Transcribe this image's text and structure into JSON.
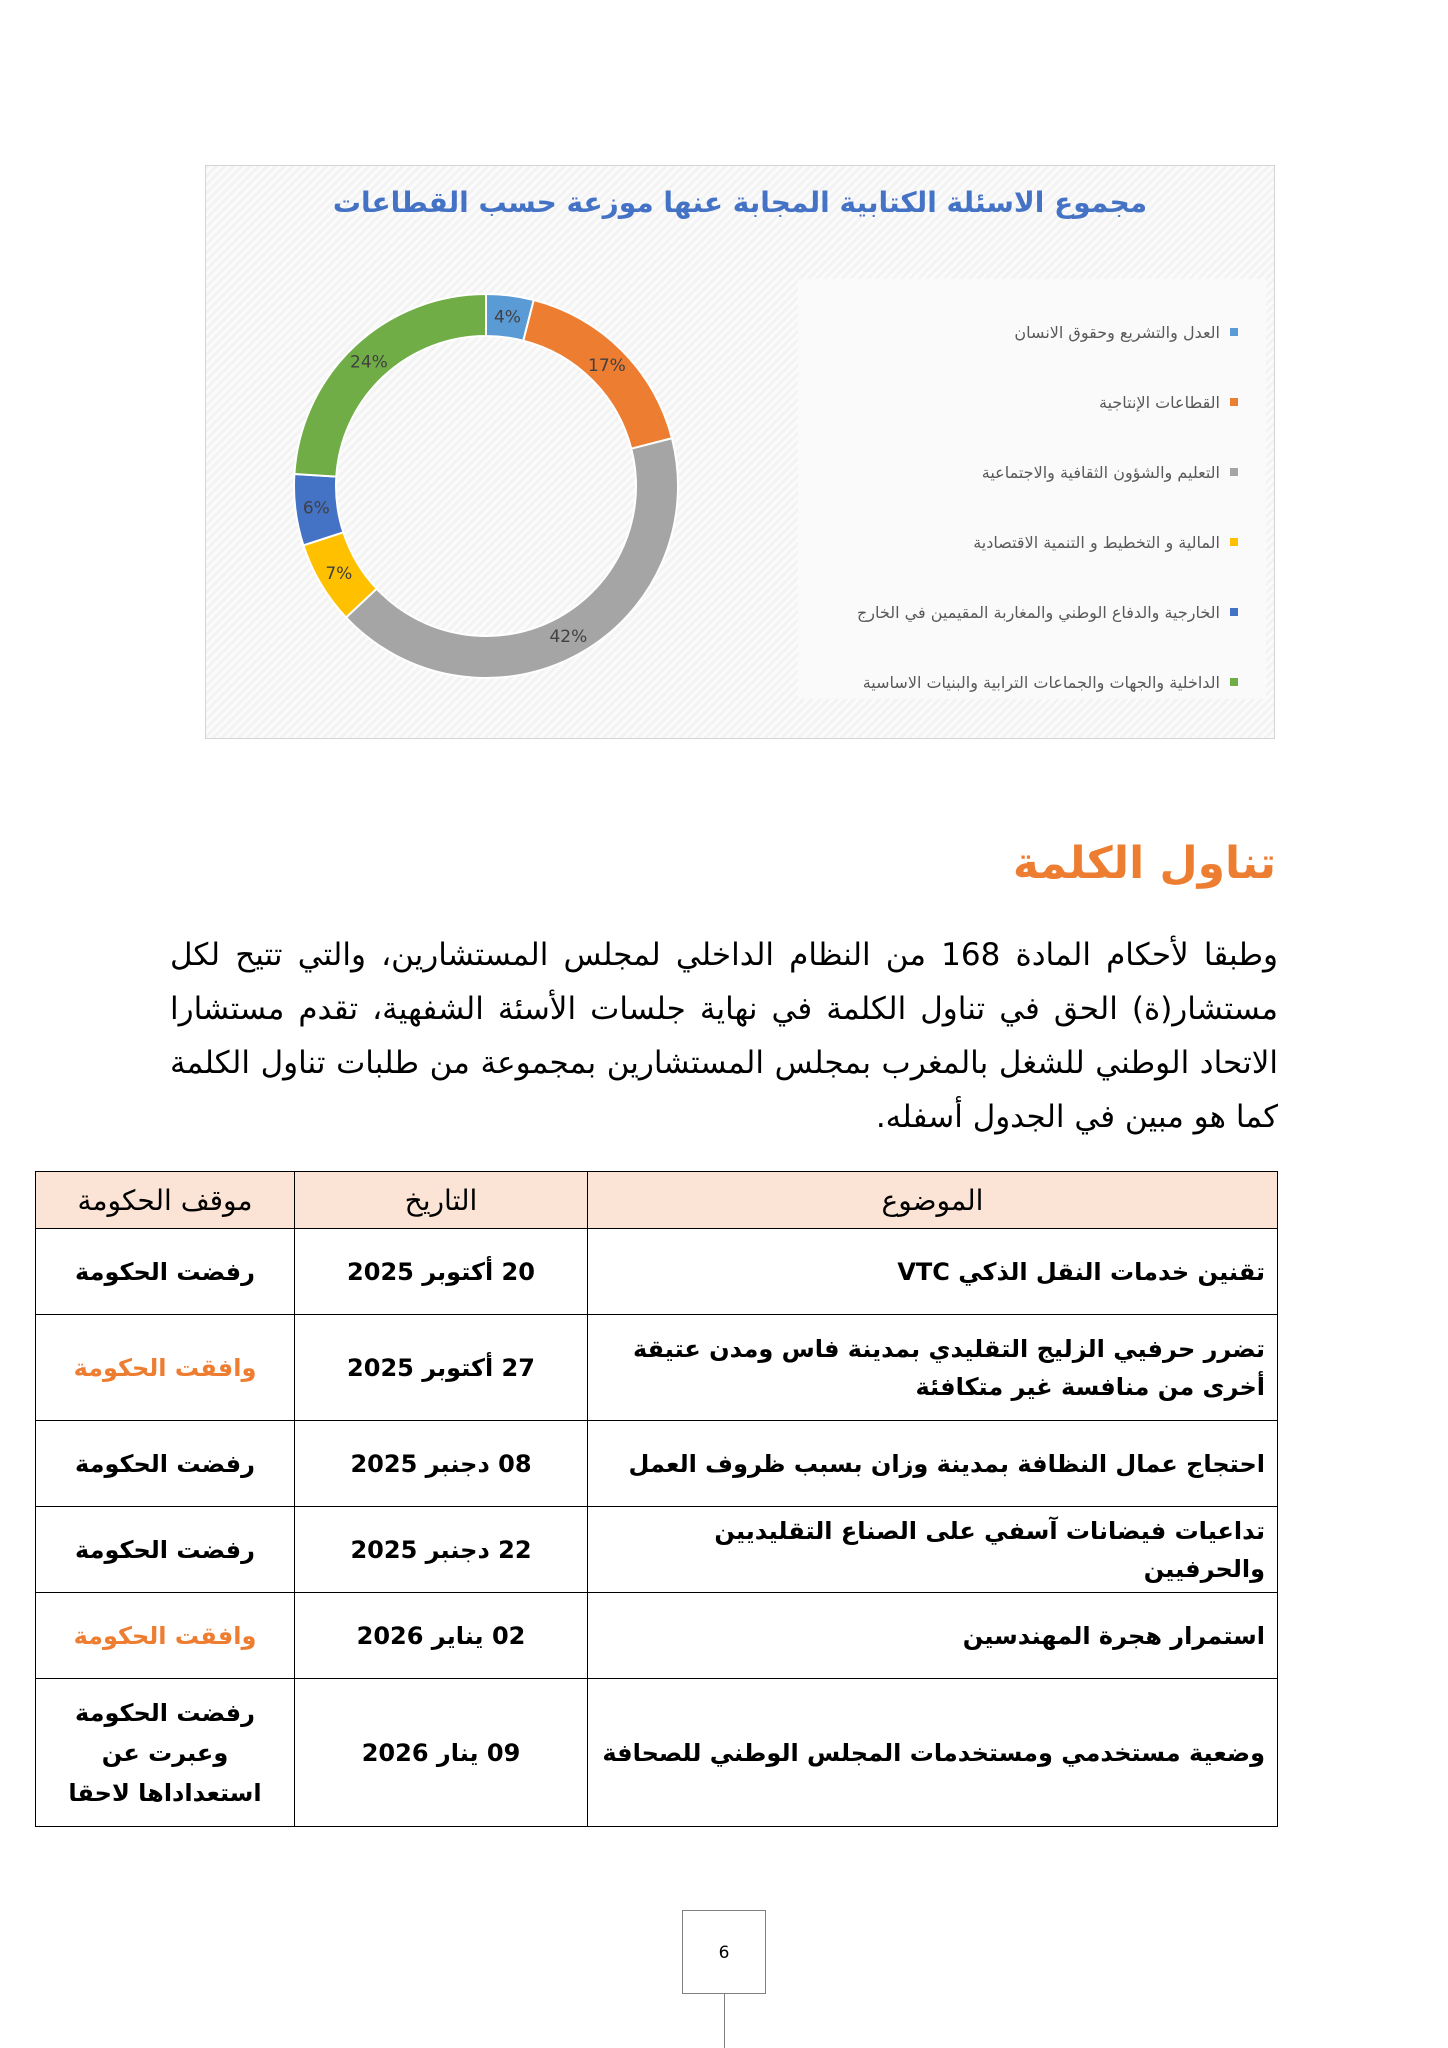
{
  "chart_data": {
    "type": "pie",
    "title": "مجموع الاسئلة الكتابية المجابة عنها موزعة حسب القطاعات",
    "categories": [
      "العدل والتشريع وحقوق الانسان",
      "القطاعات الإنتاجية",
      "التعليم والشؤون الثقافية والاجتماعية",
      "المالية و التخطيط و التنمية الاقتصادية",
      "الخارجية والدفاع الوطني والمغاربة المقيمين في الخارج",
      "الداخلية والجهات والجماعات الترابية والبنيات الاساسية"
    ],
    "values": [
      4,
      17,
      42,
      7,
      6,
      24
    ],
    "labels": [
      "4%",
      "17%",
      "42%",
      "7%",
      "6%",
      "24%"
    ],
    "colors": [
      "#5b9bd5",
      "#ed7d31",
      "#a5a5a5",
      "#ffc000",
      "#4472c4",
      "#70ad47"
    ],
    "legend": "right"
  },
  "section": {
    "heading": "تناول الكلمة",
    "intro": "وطبقا لأحكام المادة 168 من النظام الداخلي لمجلس المستشارين، والتي تتيح لكل مستشار(ة) الحق في تناول الكلمة في نهاية جلسات الأسئة الشفهية، تقدم مستشارا الاتحاد الوطني للشغل بالمغرب بمجلس المستشارين بمجموعة من طلبات تناول الكلمة كما هو مبين في الجدول أسفله."
  },
  "table": {
    "headers": {
      "subject": "الموضوع",
      "date": "التاريخ",
      "position": "موقف الحكومة"
    },
    "rows": [
      {
        "subject": "تقنين خدمات النقل الذكي VTC",
        "date": "20 أكتوبر 2025",
        "position": "رفضت الحكومة",
        "status": "rejected"
      },
      {
        "subject": "تضرر حرفيي الزليج التقليدي بمدينة فاس ومدن عتيقة أخرى من منافسة غير متكافئة",
        "date": "27 أكتوبر 2025",
        "position": "وافقت الحكومة",
        "status": "approved"
      },
      {
        "subject": "احتجاج عمال النظافة بمدينة وزان بسبب ظروف العمل",
        "date": "08 دجنبر  2025",
        "position": "رفضت الحكومة",
        "status": "rejected"
      },
      {
        "subject": "تداعيات فيضانات آسفي على الصناع التقليديين والحرفيين",
        "date": "22 دجنبر 2025",
        "position": "رفضت الحكومة",
        "status": "rejected"
      },
      {
        "subject": "استمرار هجرة المهندسين",
        "date": "02 يناير 2026",
        "position": "وافقت الحكومة",
        "status": "approved"
      },
      {
        "subject": "وضعية مستخدمي ومستخدمات المجلس الوطني للصحافة",
        "date": "09 ينار 2026",
        "position": "رفضت الحكومة وعبرت عن استعداداها لاحقا",
        "status": "rejected"
      }
    ]
  },
  "footer": {
    "page_number": "6"
  }
}
